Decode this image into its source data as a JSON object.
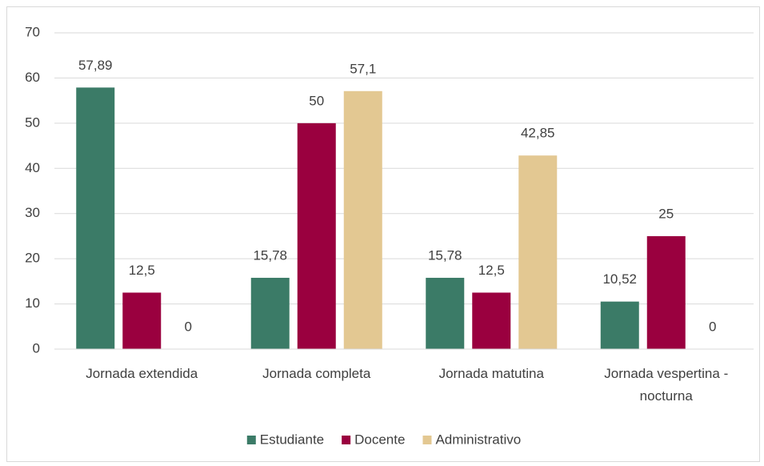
{
  "chart_data": {
    "type": "bar",
    "categories": [
      "Jornada extendida",
      "Jornada completa",
      "Jornada matutina",
      "Jornada vespertina - nocturna"
    ],
    "series": [
      {
        "name": "Estudiante",
        "color": "#3b7b67",
        "values": [
          57.89,
          15.78,
          15.78,
          10.52
        ],
        "value_labels": [
          "57,89",
          "15,78",
          "15,78",
          "10,52"
        ]
      },
      {
        "name": "Docente",
        "color": "#9a003f",
        "values": [
          12.5,
          50,
          12.5,
          25
        ],
        "value_labels": [
          "12,5",
          "50",
          "12,5",
          "25"
        ]
      },
      {
        "name": "Administrativo",
        "color": "#e3c892",
        "values": [
          0,
          57.1,
          42.85,
          0
        ],
        "value_labels": [
          "0",
          "57,1",
          "42,85",
          "0"
        ]
      }
    ],
    "ylim": [
      0,
      70
    ],
    "yticks": [
      0,
      10,
      20,
      30,
      40,
      50,
      60,
      70
    ],
    "grid": true,
    "legend": "bottom"
  }
}
